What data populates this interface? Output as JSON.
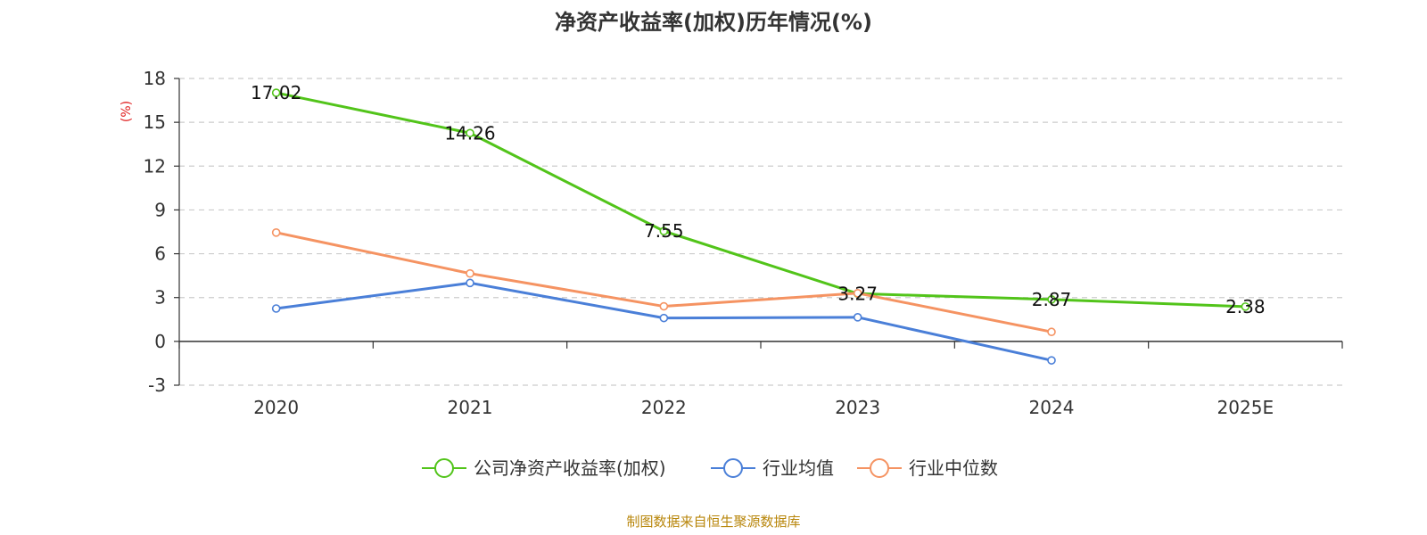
{
  "chart_data": {
    "type": "line",
    "title": "净资产收益率(加权)历年情况(%)",
    "ylabel": "(%)",
    "categories": [
      "2020",
      "2021",
      "2022",
      "2023",
      "2024",
      "2025E"
    ],
    "ylim": [
      -3,
      18
    ],
    "yticks": [
      -3,
      0,
      3,
      6,
      9,
      12,
      15,
      18
    ],
    "grid": true,
    "legend_position": "bottom",
    "series": [
      {
        "name": "公司净资产收益率(加权)",
        "color": "#52c41a",
        "values": [
          17.02,
          14.26,
          7.55,
          3.27,
          2.87,
          2.38
        ],
        "show_labels": true
      },
      {
        "name": "行业均值",
        "color": "#4a7fd8",
        "values": [
          2.25,
          4.0,
          1.6,
          1.65,
          -1.3,
          null
        ],
        "show_labels": false
      },
      {
        "name": "行业中位数",
        "color": "#f59362",
        "values": [
          7.45,
          4.65,
          2.4,
          3.3,
          0.65,
          null
        ],
        "show_labels": false
      }
    ],
    "ylabel_color": "#e02020",
    "source": "制图数据来自恒生聚源数据库",
    "source_color": "#b8860b"
  }
}
